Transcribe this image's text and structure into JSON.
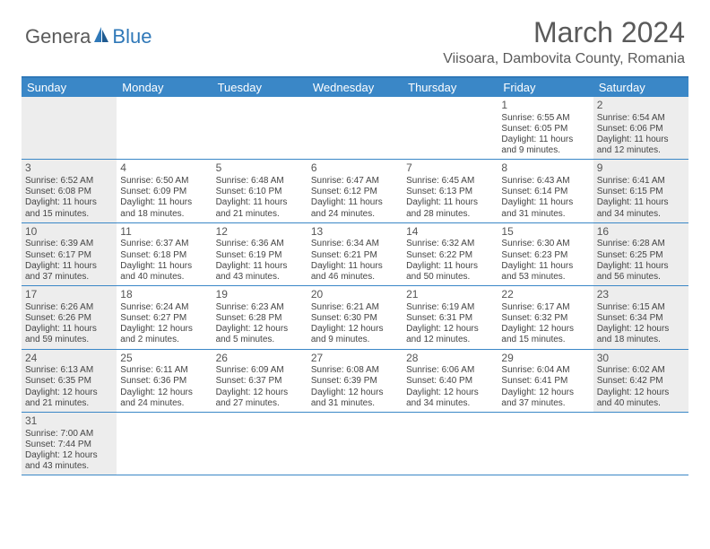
{
  "logo": {
    "textA": "Genera",
    "textB": "Blue"
  },
  "title": "March 2024",
  "location": "Viisoara, Dambovita County, Romania",
  "colors": {
    "headerBg": "#3a87c7",
    "headerText": "#ffffff",
    "borderTop": "#2f78b8",
    "rowBorder": "#3a87c7",
    "shade": "#ededed",
    "text": "#444444",
    "titleText": "#5a5a5a"
  },
  "dayHeaders": [
    "Sunday",
    "Monday",
    "Tuesday",
    "Wednesday",
    "Thursday",
    "Friday",
    "Saturday"
  ],
  "weeks": [
    [
      {
        "num": "",
        "lines": [],
        "shade": true
      },
      {
        "num": "",
        "lines": [],
        "shade": false
      },
      {
        "num": "",
        "lines": [],
        "shade": false
      },
      {
        "num": "",
        "lines": [],
        "shade": false
      },
      {
        "num": "",
        "lines": [],
        "shade": false
      },
      {
        "num": "1",
        "lines": [
          "Sunrise: 6:55 AM",
          "Sunset: 6:05 PM",
          "Daylight: 11 hours and 9 minutes."
        ],
        "shade": false
      },
      {
        "num": "2",
        "lines": [
          "Sunrise: 6:54 AM",
          "Sunset: 6:06 PM",
          "Daylight: 11 hours and 12 minutes."
        ],
        "shade": true
      }
    ],
    [
      {
        "num": "3",
        "lines": [
          "Sunrise: 6:52 AM",
          "Sunset: 6:08 PM",
          "Daylight: 11 hours and 15 minutes."
        ],
        "shade": true
      },
      {
        "num": "4",
        "lines": [
          "Sunrise: 6:50 AM",
          "Sunset: 6:09 PM",
          "Daylight: 11 hours and 18 minutes."
        ],
        "shade": false
      },
      {
        "num": "5",
        "lines": [
          "Sunrise: 6:48 AM",
          "Sunset: 6:10 PM",
          "Daylight: 11 hours and 21 minutes."
        ],
        "shade": false
      },
      {
        "num": "6",
        "lines": [
          "Sunrise: 6:47 AM",
          "Sunset: 6:12 PM",
          "Daylight: 11 hours and 24 minutes."
        ],
        "shade": false
      },
      {
        "num": "7",
        "lines": [
          "Sunrise: 6:45 AM",
          "Sunset: 6:13 PM",
          "Daylight: 11 hours and 28 minutes."
        ],
        "shade": false
      },
      {
        "num": "8",
        "lines": [
          "Sunrise: 6:43 AM",
          "Sunset: 6:14 PM",
          "Daylight: 11 hours and 31 minutes."
        ],
        "shade": false
      },
      {
        "num": "9",
        "lines": [
          "Sunrise: 6:41 AM",
          "Sunset: 6:15 PM",
          "Daylight: 11 hours and 34 minutes."
        ],
        "shade": true
      }
    ],
    [
      {
        "num": "10",
        "lines": [
          "Sunrise: 6:39 AM",
          "Sunset: 6:17 PM",
          "Daylight: 11 hours and 37 minutes."
        ],
        "shade": true
      },
      {
        "num": "11",
        "lines": [
          "Sunrise: 6:37 AM",
          "Sunset: 6:18 PM",
          "Daylight: 11 hours and 40 minutes."
        ],
        "shade": false
      },
      {
        "num": "12",
        "lines": [
          "Sunrise: 6:36 AM",
          "Sunset: 6:19 PM",
          "Daylight: 11 hours and 43 minutes."
        ],
        "shade": false
      },
      {
        "num": "13",
        "lines": [
          "Sunrise: 6:34 AM",
          "Sunset: 6:21 PM",
          "Daylight: 11 hours and 46 minutes."
        ],
        "shade": false
      },
      {
        "num": "14",
        "lines": [
          "Sunrise: 6:32 AM",
          "Sunset: 6:22 PM",
          "Daylight: 11 hours and 50 minutes."
        ],
        "shade": false
      },
      {
        "num": "15",
        "lines": [
          "Sunrise: 6:30 AM",
          "Sunset: 6:23 PM",
          "Daylight: 11 hours and 53 minutes."
        ],
        "shade": false
      },
      {
        "num": "16",
        "lines": [
          "Sunrise: 6:28 AM",
          "Sunset: 6:25 PM",
          "Daylight: 11 hours and 56 minutes."
        ],
        "shade": true
      }
    ],
    [
      {
        "num": "17",
        "lines": [
          "Sunrise: 6:26 AM",
          "Sunset: 6:26 PM",
          "Daylight: 11 hours and 59 minutes."
        ],
        "shade": true
      },
      {
        "num": "18",
        "lines": [
          "Sunrise: 6:24 AM",
          "Sunset: 6:27 PM",
          "Daylight: 12 hours and 2 minutes."
        ],
        "shade": false
      },
      {
        "num": "19",
        "lines": [
          "Sunrise: 6:23 AM",
          "Sunset: 6:28 PM",
          "Daylight: 12 hours and 5 minutes."
        ],
        "shade": false
      },
      {
        "num": "20",
        "lines": [
          "Sunrise: 6:21 AM",
          "Sunset: 6:30 PM",
          "Daylight: 12 hours and 9 minutes."
        ],
        "shade": false
      },
      {
        "num": "21",
        "lines": [
          "Sunrise: 6:19 AM",
          "Sunset: 6:31 PM",
          "Daylight: 12 hours and 12 minutes."
        ],
        "shade": false
      },
      {
        "num": "22",
        "lines": [
          "Sunrise: 6:17 AM",
          "Sunset: 6:32 PM",
          "Daylight: 12 hours and 15 minutes."
        ],
        "shade": false
      },
      {
        "num": "23",
        "lines": [
          "Sunrise: 6:15 AM",
          "Sunset: 6:34 PM",
          "Daylight: 12 hours and 18 minutes."
        ],
        "shade": true
      }
    ],
    [
      {
        "num": "24",
        "lines": [
          "Sunrise: 6:13 AM",
          "Sunset: 6:35 PM",
          "Daylight: 12 hours and 21 minutes."
        ],
        "shade": true
      },
      {
        "num": "25",
        "lines": [
          "Sunrise: 6:11 AM",
          "Sunset: 6:36 PM",
          "Daylight: 12 hours and 24 minutes."
        ],
        "shade": false
      },
      {
        "num": "26",
        "lines": [
          "Sunrise: 6:09 AM",
          "Sunset: 6:37 PM",
          "Daylight: 12 hours and 27 minutes."
        ],
        "shade": false
      },
      {
        "num": "27",
        "lines": [
          "Sunrise: 6:08 AM",
          "Sunset: 6:39 PM",
          "Daylight: 12 hours and 31 minutes."
        ],
        "shade": false
      },
      {
        "num": "28",
        "lines": [
          "Sunrise: 6:06 AM",
          "Sunset: 6:40 PM",
          "Daylight: 12 hours and 34 minutes."
        ],
        "shade": false
      },
      {
        "num": "29",
        "lines": [
          "Sunrise: 6:04 AM",
          "Sunset: 6:41 PM",
          "Daylight: 12 hours and 37 minutes."
        ],
        "shade": false
      },
      {
        "num": "30",
        "lines": [
          "Sunrise: 6:02 AM",
          "Sunset: 6:42 PM",
          "Daylight: 12 hours and 40 minutes."
        ],
        "shade": true
      }
    ],
    [
      {
        "num": "31",
        "lines": [
          "Sunrise: 7:00 AM",
          "Sunset: 7:44 PM",
          "Daylight: 12 hours and 43 minutes."
        ],
        "shade": true
      },
      {
        "num": "",
        "lines": [],
        "shade": false
      },
      {
        "num": "",
        "lines": [],
        "shade": false
      },
      {
        "num": "",
        "lines": [],
        "shade": false
      },
      {
        "num": "",
        "lines": [],
        "shade": false
      },
      {
        "num": "",
        "lines": [],
        "shade": false
      },
      {
        "num": "",
        "lines": [],
        "shade": false
      }
    ]
  ]
}
